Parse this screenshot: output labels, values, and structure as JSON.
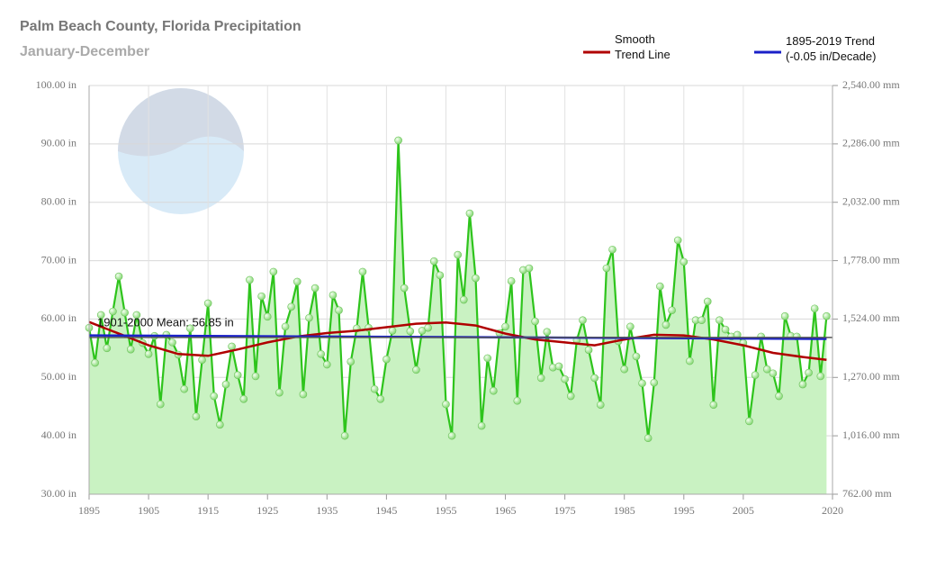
{
  "chart_data": {
    "type": "line",
    "title": "Palm Beach County, Florida Precipitation",
    "subtitle": "January-December",
    "xlim": [
      1895,
      2020
    ],
    "xticks": [
      1895,
      1905,
      1915,
      1925,
      1935,
      1945,
      1955,
      1965,
      1975,
      1985,
      1995,
      2005,
      2020
    ],
    "ylim": [
      30,
      100
    ],
    "yticks": [
      {
        "value": 30,
        "label": "30.00 in"
      },
      {
        "value": 40,
        "label": "40.00 in"
      },
      {
        "value": 50,
        "label": "50.00 in"
      },
      {
        "value": 60,
        "label": "60.00 in"
      },
      {
        "value": 70,
        "label": "70.00 in"
      },
      {
        "value": 80,
        "label": "80.00 in"
      },
      {
        "value": 90,
        "label": "90.00 in"
      },
      {
        "value": 100,
        "label": "100.00 in"
      }
    ],
    "y2lim": [
      762,
      2540
    ],
    "y2ticks": [
      {
        "value": 762,
        "label": "762.00 mm"
      },
      {
        "value": 1016,
        "label": "1,016.00 mm"
      },
      {
        "value": 1270,
        "label": "1,270.00 mm"
      },
      {
        "value": 1524,
        "label": "1,524.00 mm"
      },
      {
        "value": 1778,
        "label": "1,778.00 mm"
      },
      {
        "value": 2032,
        "label": "2,032.00 mm"
      },
      {
        "value": 2286,
        "label": "2,286.00 mm"
      },
      {
        "value": 2540,
        "label": "2,540.00 mm"
      }
    ],
    "grid": true,
    "mean": {
      "value": 56.85,
      "label": "1901-2000 Mean: 56.85 in",
      "color": "#555555"
    },
    "series": [
      {
        "color": "#2ec41c",
        "fill": "#c9f2c2",
        "markers": true,
        "x": [
          1895,
          1896,
          1897,
          1898,
          1899,
          1900,
          1901,
          1902,
          1903,
          1904,
          1905,
          1906,
          1907,
          1908,
          1909,
          1910,
          1911,
          1912,
          1913,
          1914,
          1915,
          1916,
          1917,
          1918,
          1919,
          1920,
          1921,
          1922,
          1923,
          1924,
          1925,
          1926,
          1927,
          1928,
          1929,
          1930,
          1931,
          1932,
          1933,
          1934,
          1935,
          1936,
          1937,
          1938,
          1939,
          1940,
          1941,
          1942,
          1943,
          1944,
          1945,
          1946,
          1947,
          1948,
          1949,
          1950,
          1951,
          1952,
          1953,
          1954,
          1955,
          1956,
          1957,
          1958,
          1959,
          1960,
          1961,
          1962,
          1963,
          1964,
          1965,
          1966,
          1967,
          1968,
          1969,
          1970,
          1971,
          1972,
          1973,
          1974,
          1975,
          1976,
          1977,
          1978,
          1979,
          1980,
          1981,
          1982,
          1983,
          1984,
          1985,
          1986,
          1987,
          1988,
          1989,
          1990,
          1991,
          1992,
          1993,
          1994,
          1995,
          1996,
          1997,
          1998,
          1999,
          2000,
          2001,
          2002,
          2003,
          2004,
          2005,
          2006,
          2007,
          2008,
          2009,
          2010,
          2011,
          2012,
          2013,
          2014,
          2015,
          2016,
          2017,
          2018,
          2019
        ],
        "values": [
          58.5,
          52.5,
          60.7,
          55,
          61.3,
          67.3,
          61.1,
          54.8,
          60.7,
          55.9,
          54,
          57.1,
          45.4,
          57.3,
          56,
          53.9,
          48,
          58.4,
          43.3,
          53,
          62.7,
          46.8,
          41.9,
          48.8,
          55.3,
          50.4,
          46.3,
          66.7,
          50.2,
          63.9,
          60.4,
          68.1,
          47.4,
          58.7,
          62.1,
          66.4,
          47.1,
          60.2,
          65.3,
          54,
          52.2,
          64.1,
          61.5,
          40,
          52.7,
          58.4,
          68.1,
          58.5,
          48,
          46.3,
          53.1,
          58,
          90.6,
          65.3,
          57.9,
          51.3,
          58,
          58.5,
          69.9,
          67.5,
          45.4,
          40,
          71,
          63.3,
          78.1,
          67,
          41.7,
          53.3,
          47.7,
          57.6,
          58.7,
          66.5,
          46,
          68.4,
          68.7,
          59.6,
          49.9,
          57.8,
          51.7,
          51.9,
          49.7,
          46.8,
          56.4,
          59.8,
          54.7,
          49.9,
          45.3,
          68.7,
          71.9,
          56.2,
          51.4,
          58.7,
          53.6,
          49,
          39.6,
          49.1,
          65.6,
          59,
          61.5,
          73.5,
          69.8,
          52.8,
          59.8,
          59.8,
          63,
          45.3,
          59.8,
          58.2,
          57,
          57.3,
          55.9,
          42.5,
          50.4,
          57,
          51.4,
          50.7,
          46.8,
          60.5,
          57.1,
          57,
          48.8,
          50.8,
          61.8,
          50.2,
          60.5
        ]
      },
      {
        "name": "Smooth Trend Line",
        "color": "#b00000",
        "x": [
          1895,
          1900,
          1905,
          1910,
          1915,
          1920,
          1925,
          1930,
          1935,
          1940,
          1945,
          1950,
          1955,
          1960,
          1965,
          1970,
          1975,
          1980,
          1985,
          1990,
          1995,
          2000,
          2005,
          2010,
          2015,
          2019
        ],
        "values": [
          59.5,
          57.5,
          55.5,
          54,
          53.7,
          54.8,
          56,
          57,
          57.6,
          58,
          58.6,
          59.2,
          59.4,
          58.9,
          57.5,
          56.5,
          56,
          55.5,
          56.5,
          57.3,
          57.2,
          56.5,
          55.5,
          54.2,
          53.5,
          53
        ]
      },
      {
        "name": "1895-2019 Trend (-0.05 in/Decade)",
        "color": "#1a20c8",
        "x": [
          1895,
          2019
        ],
        "values": [
          57.2,
          56.6
        ]
      }
    ]
  }
}
